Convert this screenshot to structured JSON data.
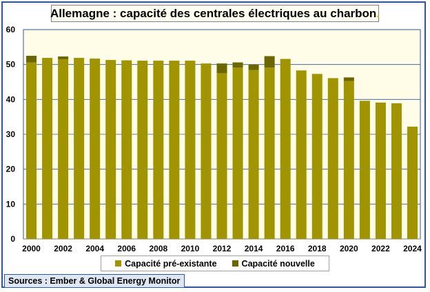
{
  "title": "Allemagne : capacité des centrales électriques au charbon",
  "title_trailing_dot": ".",
  "source": "Sources : Ember & Global Energy Monitor",
  "chart_data": {
    "type": "bar",
    "stacked": true,
    "categories": [
      "2000",
      "2001",
      "2002",
      "2003",
      "2004",
      "2005",
      "2006",
      "2007",
      "2008",
      "2009",
      "2010",
      "2011",
      "2012",
      "2013",
      "2014",
      "2015",
      "2016",
      "2017",
      "2018",
      "2019",
      "2020",
      "2021",
      "2022",
      "2023",
      "2024"
    ],
    "x_tick_labels": [
      "2000",
      "2002",
      "2004",
      "2006",
      "2008",
      "2010",
      "2012",
      "2014",
      "2016",
      "2018",
      "2020",
      "2022",
      "2024"
    ],
    "series": [
      {
        "name": "Capacité pré-existante",
        "color": "#a09400",
        "values": [
          50.6,
          51.9,
          51.5,
          51.9,
          51.7,
          51.3,
          51.2,
          51.1,
          51.1,
          51.1,
          51.1,
          50.3,
          47.5,
          49.1,
          48.4,
          49.1,
          51.6,
          48.3,
          47.3,
          46.1,
          45.3,
          39.6,
          39.1,
          38.9,
          32.2
        ]
      },
      {
        "name": "Capacité nouvelle",
        "color": "#6b6600",
        "values": [
          1.9,
          0,
          0.8,
          0,
          0,
          0,
          0,
          0,
          0,
          0,
          0,
          0,
          2.8,
          1.5,
          1.6,
          3.3,
          0,
          0,
          0,
          0,
          1.0,
          0,
          0,
          0,
          0
        ]
      }
    ],
    "ylim": [
      0,
      60
    ],
    "yticks": [
      0,
      10,
      20,
      30,
      40,
      50,
      60
    ],
    "grid": true,
    "plot_background": "#fffde8",
    "gridline_color": "#2f5597",
    "legend_position": "bottom"
  }
}
